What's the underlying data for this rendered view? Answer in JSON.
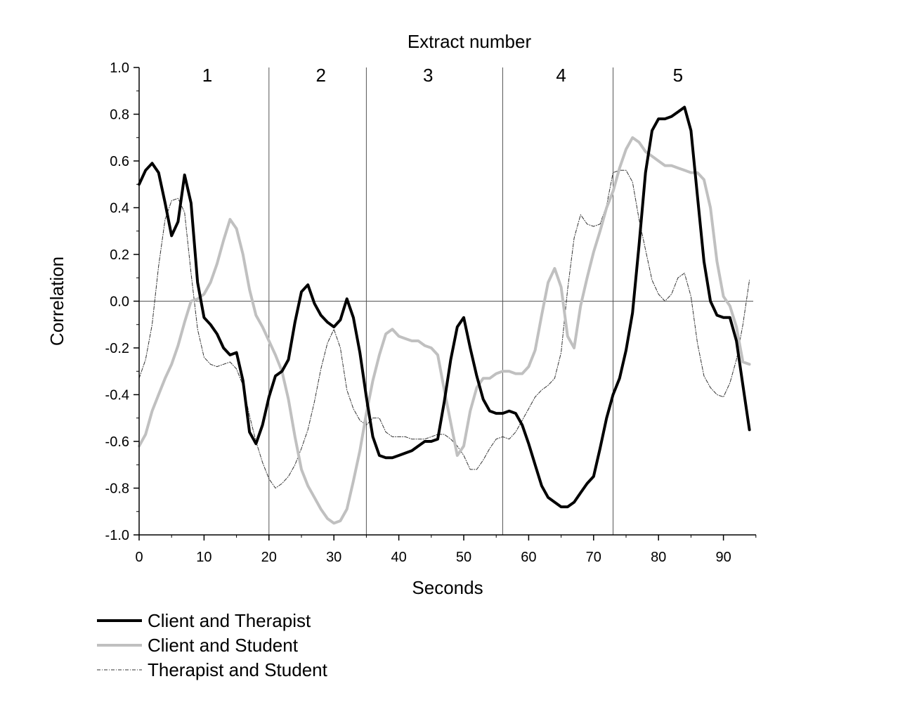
{
  "chart_data": {
    "type": "line",
    "title": "",
    "top_axis_label": "Extract number",
    "xlabel": "Seconds",
    "ylabel": "Correlation",
    "xlim": [
      0,
      95
    ],
    "ylim": [
      -1.0,
      1.0
    ],
    "x_ticks": [
      0,
      10,
      20,
      30,
      40,
      50,
      60,
      70,
      80,
      90
    ],
    "x_tick_labels": [
      "0",
      "10",
      "20",
      "30",
      "40",
      "50",
      "60",
      "70",
      "80",
      "90"
    ],
    "y_ticks": [
      -1.0,
      -0.8,
      -0.6,
      -0.4,
      -0.2,
      0.0,
      0.2,
      0.4,
      0.6,
      0.8,
      1.0
    ],
    "y_tick_labels": [
      "-1.0",
      "-0.8",
      "-0.6",
      "-0.4",
      "-0.2",
      "0.0",
      "0.2",
      "0.4",
      "0.6",
      "0.8",
      "1.0"
    ],
    "extract_boundaries": [
      20,
      35,
      56,
      73
    ],
    "extracts": [
      {
        "label": "1",
        "x": 10.5
      },
      {
        "label": "2",
        "x": 28
      },
      {
        "label": "3",
        "x": 44.5
      },
      {
        "label": "4",
        "x": 65
      },
      {
        "label": "5",
        "x": 83
      }
    ],
    "legend_placement": "bottom-left",
    "series": [
      {
        "name": "Client and Therapist",
        "color": "#000000",
        "style": "solid-thick",
        "points": [
          [
            0,
            0.5
          ],
          [
            1,
            0.56
          ],
          [
            2,
            0.59
          ],
          [
            3,
            0.55
          ],
          [
            4,
            0.42
          ],
          [
            5,
            0.28
          ],
          [
            6,
            0.34
          ],
          [
            7,
            0.54
          ],
          [
            8,
            0.42
          ],
          [
            9,
            0.08
          ],
          [
            10,
            -0.07
          ],
          [
            11,
            -0.1
          ],
          [
            12,
            -0.14
          ],
          [
            13,
            -0.2
          ],
          [
            14,
            -0.23
          ],
          [
            15,
            -0.22
          ],
          [
            16,
            -0.34
          ],
          [
            17,
            -0.56
          ],
          [
            18,
            -0.61
          ],
          [
            19,
            -0.53
          ],
          [
            20,
            -0.41
          ],
          [
            21,
            -0.32
          ],
          [
            22,
            -0.3
          ],
          [
            23,
            -0.25
          ],
          [
            24,
            -0.09
          ],
          [
            25,
            0.04
          ],
          [
            26,
            0.07
          ],
          [
            27,
            -0.01
          ],
          [
            28,
            -0.06
          ],
          [
            29,
            -0.09
          ],
          [
            30,
            -0.11
          ],
          [
            31,
            -0.08
          ],
          [
            32,
            0.01
          ],
          [
            33,
            -0.07
          ],
          [
            34,
            -0.22
          ],
          [
            35,
            -0.41
          ],
          [
            36,
            -0.58
          ],
          [
            37,
            -0.66
          ],
          [
            38,
            -0.67
          ],
          [
            39,
            -0.67
          ],
          [
            40,
            -0.66
          ],
          [
            41,
            -0.65
          ],
          [
            42,
            -0.64
          ],
          [
            43,
            -0.62
          ],
          [
            44,
            -0.6
          ],
          [
            45,
            -0.6
          ],
          [
            46,
            -0.59
          ],
          [
            47,
            -0.43
          ],
          [
            48,
            -0.25
          ],
          [
            49,
            -0.11
          ],
          [
            50,
            -0.07
          ],
          [
            51,
            -0.2
          ],
          [
            52,
            -0.32
          ],
          [
            53,
            -0.42
          ],
          [
            54,
            -0.47
          ],
          [
            55,
            -0.48
          ],
          [
            56,
            -0.48
          ],
          [
            57,
            -0.47
          ],
          [
            58,
            -0.48
          ],
          [
            59,
            -0.53
          ],
          [
            60,
            -0.61
          ],
          [
            61,
            -0.7
          ],
          [
            62,
            -0.79
          ],
          [
            63,
            -0.84
          ],
          [
            64,
            -0.86
          ],
          [
            65,
            -0.88
          ],
          [
            66,
            -0.88
          ],
          [
            67,
            -0.86
          ],
          [
            68,
            -0.82
          ],
          [
            69,
            -0.78
          ],
          [
            70,
            -0.75
          ],
          [
            71,
            -0.63
          ],
          [
            72,
            -0.5
          ],
          [
            73,
            -0.4
          ],
          [
            74,
            -0.33
          ],
          [
            75,
            -0.21
          ],
          [
            76,
            -0.05
          ],
          [
            77,
            0.24
          ],
          [
            78,
            0.55
          ],
          [
            79,
            0.73
          ],
          [
            80,
            0.78
          ],
          [
            81,
            0.78
          ],
          [
            82,
            0.79
          ],
          [
            83,
            0.81
          ],
          [
            84,
            0.83
          ],
          [
            85,
            0.73
          ],
          [
            86,
            0.45
          ],
          [
            87,
            0.17
          ],
          [
            88,
            0.0
          ],
          [
            89,
            -0.06
          ],
          [
            90,
            -0.07
          ],
          [
            91,
            -0.07
          ],
          [
            92,
            -0.17
          ],
          [
            93,
            -0.36
          ],
          [
            94,
            -0.55
          ]
        ]
      },
      {
        "name": "Client and Student",
        "color": "#c0c0c0",
        "style": "solid-thick",
        "points": [
          [
            0,
            -0.62
          ],
          [
            1,
            -0.57
          ],
          [
            2,
            -0.47
          ],
          [
            3,
            -0.4
          ],
          [
            4,
            -0.33
          ],
          [
            5,
            -0.27
          ],
          [
            6,
            -0.19
          ],
          [
            7,
            -0.09
          ],
          [
            8,
            0.0
          ],
          [
            9,
            0.01
          ],
          [
            10,
            0.03
          ],
          [
            11,
            0.08
          ],
          [
            12,
            0.16
          ],
          [
            13,
            0.26
          ],
          [
            14,
            0.35
          ],
          [
            15,
            0.31
          ],
          [
            16,
            0.2
          ],
          [
            17,
            0.05
          ],
          [
            18,
            -0.06
          ],
          [
            19,
            -0.11
          ],
          [
            20,
            -0.17
          ],
          [
            21,
            -0.23
          ],
          [
            22,
            -0.3
          ],
          [
            23,
            -0.42
          ],
          [
            24,
            -0.58
          ],
          [
            25,
            -0.72
          ],
          [
            26,
            -0.79
          ],
          [
            27,
            -0.84
          ],
          [
            28,
            -0.89
          ],
          [
            29,
            -0.93
          ],
          [
            30,
            -0.95
          ],
          [
            31,
            -0.94
          ],
          [
            32,
            -0.89
          ],
          [
            33,
            -0.77
          ],
          [
            34,
            -0.64
          ],
          [
            35,
            -0.48
          ],
          [
            36,
            -0.34
          ],
          [
            37,
            -0.23
          ],
          [
            38,
            -0.14
          ],
          [
            39,
            -0.12
          ],
          [
            40,
            -0.15
          ],
          [
            41,
            -0.16
          ],
          [
            42,
            -0.17
          ],
          [
            43,
            -0.17
          ],
          [
            44,
            -0.19
          ],
          [
            45,
            -0.2
          ],
          [
            46,
            -0.23
          ],
          [
            47,
            -0.38
          ],
          [
            48,
            -0.52
          ],
          [
            49,
            -0.66
          ],
          [
            50,
            -0.62
          ],
          [
            51,
            -0.47
          ],
          [
            52,
            -0.37
          ],
          [
            53,
            -0.33
          ],
          [
            54,
            -0.33
          ],
          [
            55,
            -0.31
          ],
          [
            56,
            -0.3
          ],
          [
            57,
            -0.3
          ],
          [
            58,
            -0.31
          ],
          [
            59,
            -0.31
          ],
          [
            60,
            -0.28
          ],
          [
            61,
            -0.21
          ],
          [
            62,
            -0.06
          ],
          [
            63,
            0.08
          ],
          [
            64,
            0.14
          ],
          [
            65,
            0.06
          ],
          [
            66,
            -0.15
          ],
          [
            67,
            -0.2
          ],
          [
            68,
            -0.02
          ],
          [
            69,
            0.1
          ],
          [
            70,
            0.21
          ],
          [
            71,
            0.3
          ],
          [
            72,
            0.4
          ],
          [
            73,
            0.47
          ],
          [
            74,
            0.57
          ],
          [
            75,
            0.65
          ],
          [
            76,
            0.7
          ],
          [
            77,
            0.68
          ],
          [
            78,
            0.64
          ],
          [
            79,
            0.62
          ],
          [
            80,
            0.6
          ],
          [
            81,
            0.58
          ],
          [
            82,
            0.58
          ],
          [
            83,
            0.57
          ],
          [
            84,
            0.56
          ],
          [
            85,
            0.55
          ],
          [
            86,
            0.55
          ],
          [
            87,
            0.52
          ],
          [
            88,
            0.4
          ],
          [
            89,
            0.17
          ],
          [
            90,
            0.02
          ],
          [
            91,
            -0.02
          ],
          [
            92,
            -0.11
          ],
          [
            93,
            -0.26
          ],
          [
            94,
            -0.27
          ]
        ]
      },
      {
        "name": "Therapist and Student",
        "color": "#333333",
        "style": "dash-dot-thin",
        "points": [
          [
            0,
            -0.33
          ],
          [
            1,
            -0.25
          ],
          [
            2,
            -0.1
          ],
          [
            3,
            0.15
          ],
          [
            4,
            0.35
          ],
          [
            5,
            0.43
          ],
          [
            6,
            0.44
          ],
          [
            7,
            0.38
          ],
          [
            8,
            0.12
          ],
          [
            9,
            -0.12
          ],
          [
            10,
            -0.24
          ],
          [
            11,
            -0.27
          ],
          [
            12,
            -0.28
          ],
          [
            13,
            -0.27
          ],
          [
            14,
            -0.26
          ],
          [
            15,
            -0.29
          ],
          [
            16,
            -0.36
          ],
          [
            17,
            -0.49
          ],
          [
            18,
            -0.6
          ],
          [
            19,
            -0.69
          ],
          [
            20,
            -0.76
          ],
          [
            21,
            -0.8
          ],
          [
            22,
            -0.78
          ],
          [
            23,
            -0.75
          ],
          [
            24,
            -0.7
          ],
          [
            25,
            -0.63
          ],
          [
            26,
            -0.55
          ],
          [
            27,
            -0.43
          ],
          [
            28,
            -0.29
          ],
          [
            29,
            -0.18
          ],
          [
            30,
            -0.12
          ],
          [
            31,
            -0.2
          ],
          [
            32,
            -0.38
          ],
          [
            33,
            -0.46
          ],
          [
            34,
            -0.51
          ],
          [
            35,
            -0.53
          ],
          [
            36,
            -0.5
          ],
          [
            37,
            -0.5
          ],
          [
            38,
            -0.56
          ],
          [
            39,
            -0.58
          ],
          [
            40,
            -0.58
          ],
          [
            41,
            -0.58
          ],
          [
            42,
            -0.59
          ],
          [
            43,
            -0.59
          ],
          [
            44,
            -0.59
          ],
          [
            45,
            -0.58
          ],
          [
            46,
            -0.57
          ],
          [
            47,
            -0.57
          ],
          [
            48,
            -0.59
          ],
          [
            49,
            -0.62
          ],
          [
            50,
            -0.66
          ],
          [
            51,
            -0.72
          ],
          [
            52,
            -0.72
          ],
          [
            53,
            -0.68
          ],
          [
            54,
            -0.63
          ],
          [
            55,
            -0.59
          ],
          [
            56,
            -0.58
          ],
          [
            57,
            -0.59
          ],
          [
            58,
            -0.56
          ],
          [
            59,
            -0.51
          ],
          [
            60,
            -0.46
          ],
          [
            61,
            -0.41
          ],
          [
            62,
            -0.38
          ],
          [
            63,
            -0.36
          ],
          [
            64,
            -0.33
          ],
          [
            65,
            -0.22
          ],
          [
            66,
            0.05
          ],
          [
            67,
            0.27
          ],
          [
            68,
            0.37
          ],
          [
            69,
            0.33
          ],
          [
            70,
            0.32
          ],
          [
            71,
            0.33
          ],
          [
            72,
            0.41
          ],
          [
            73,
            0.55
          ],
          [
            74,
            0.56
          ],
          [
            75,
            0.56
          ],
          [
            76,
            0.51
          ],
          [
            77,
            0.35
          ],
          [
            78,
            0.22
          ],
          [
            79,
            0.09
          ],
          [
            80,
            0.03
          ],
          [
            81,
            0.0
          ],
          [
            82,
            0.03
          ],
          [
            83,
            0.1
          ],
          [
            84,
            0.12
          ],
          [
            85,
            0.02
          ],
          [
            86,
            -0.18
          ],
          [
            87,
            -0.32
          ],
          [
            88,
            -0.37
          ],
          [
            89,
            -0.4
          ],
          [
            90,
            -0.41
          ],
          [
            91,
            -0.35
          ],
          [
            92,
            -0.25
          ],
          [
            93,
            -0.1
          ],
          [
            94,
            0.09
          ]
        ]
      }
    ]
  }
}
